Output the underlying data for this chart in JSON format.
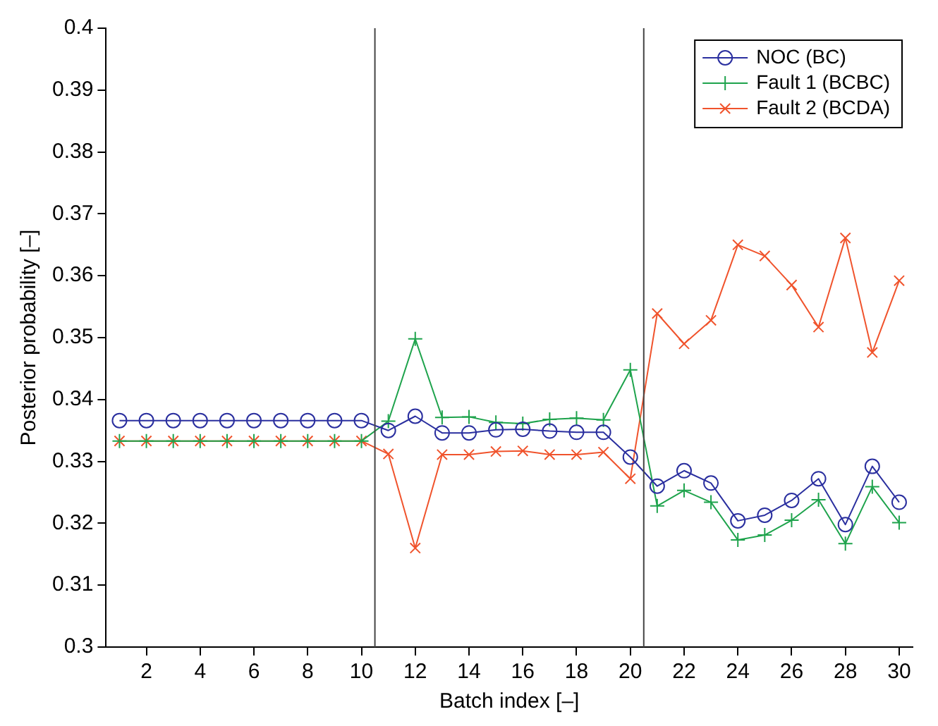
{
  "chart_data": {
    "type": "line",
    "xlabel": "Batch index [–]",
    "ylabel": "Posterior probability [–]",
    "x": [
      1,
      2,
      3,
      4,
      5,
      6,
      7,
      8,
      9,
      10,
      11,
      12,
      13,
      14,
      15,
      16,
      17,
      18,
      19,
      20,
      21,
      22,
      23,
      24,
      25,
      26,
      27,
      28,
      29,
      30
    ],
    "series": [
      {
        "name": "NOC (BC)",
        "color": "#2a2f9f",
        "marker": "circle",
        "values": [
          0.3366,
          0.3366,
          0.3366,
          0.3366,
          0.3366,
          0.3366,
          0.3366,
          0.3366,
          0.3366,
          0.3366,
          0.335,
          0.3373,
          0.3346,
          0.3346,
          0.3351,
          0.3352,
          0.3349,
          0.3347,
          0.3347,
          0.3307,
          0.326,
          0.3285,
          0.3265,
          0.3204,
          0.3213,
          0.3237,
          0.3272,
          0.3198,
          0.3292,
          0.3234
        ]
      },
      {
        "name": "Fault 1 (BCBC)",
        "color": "#1ea34c",
        "marker": "plus",
        "values": [
          0.3333,
          0.3333,
          0.3333,
          0.3333,
          0.3333,
          0.3333,
          0.3333,
          0.3333,
          0.3333,
          0.3333,
          0.3365,
          0.3498,
          0.3371,
          0.3372,
          0.3363,
          0.3361,
          0.3368,
          0.337,
          0.3367,
          0.3448,
          0.3228,
          0.3253,
          0.3234,
          0.3173,
          0.3181,
          0.3205,
          0.3238,
          0.3167,
          0.3259,
          0.3201
        ]
      },
      {
        "name": "Fault 2 (BCDA)",
        "color": "#f0532c",
        "marker": "cross",
        "values": [
          0.3333,
          0.3333,
          0.3333,
          0.3333,
          0.3333,
          0.3333,
          0.3333,
          0.3333,
          0.3333,
          0.3333,
          0.3312,
          0.316,
          0.3311,
          0.3311,
          0.3316,
          0.3317,
          0.3311,
          0.3311,
          0.3315,
          0.3272,
          0.3539,
          0.349,
          0.3528,
          0.365,
          0.3632,
          0.3585,
          0.3517,
          0.3661,
          0.3476,
          0.3592
        ]
      }
    ],
    "xlim": [
      0.5,
      30.5
    ],
    "xticks": [
      2,
      4,
      6,
      8,
      10,
      12,
      14,
      16,
      18,
      20,
      22,
      24,
      26,
      28,
      30
    ],
    "ylim": [
      0.3,
      0.4
    ],
    "yticks": [
      0.3,
      0.31,
      0.32,
      0.33,
      0.34,
      0.35,
      0.36,
      0.37,
      0.38,
      0.39,
      0.4
    ],
    "ref_lines": [
      {
        "axis": "x",
        "value": 10.5,
        "color": "#444444"
      },
      {
        "axis": "x",
        "value": 20.5,
        "color": "#444444"
      }
    ],
    "grid": false,
    "legend": "top right",
    "line_style": "solid"
  }
}
